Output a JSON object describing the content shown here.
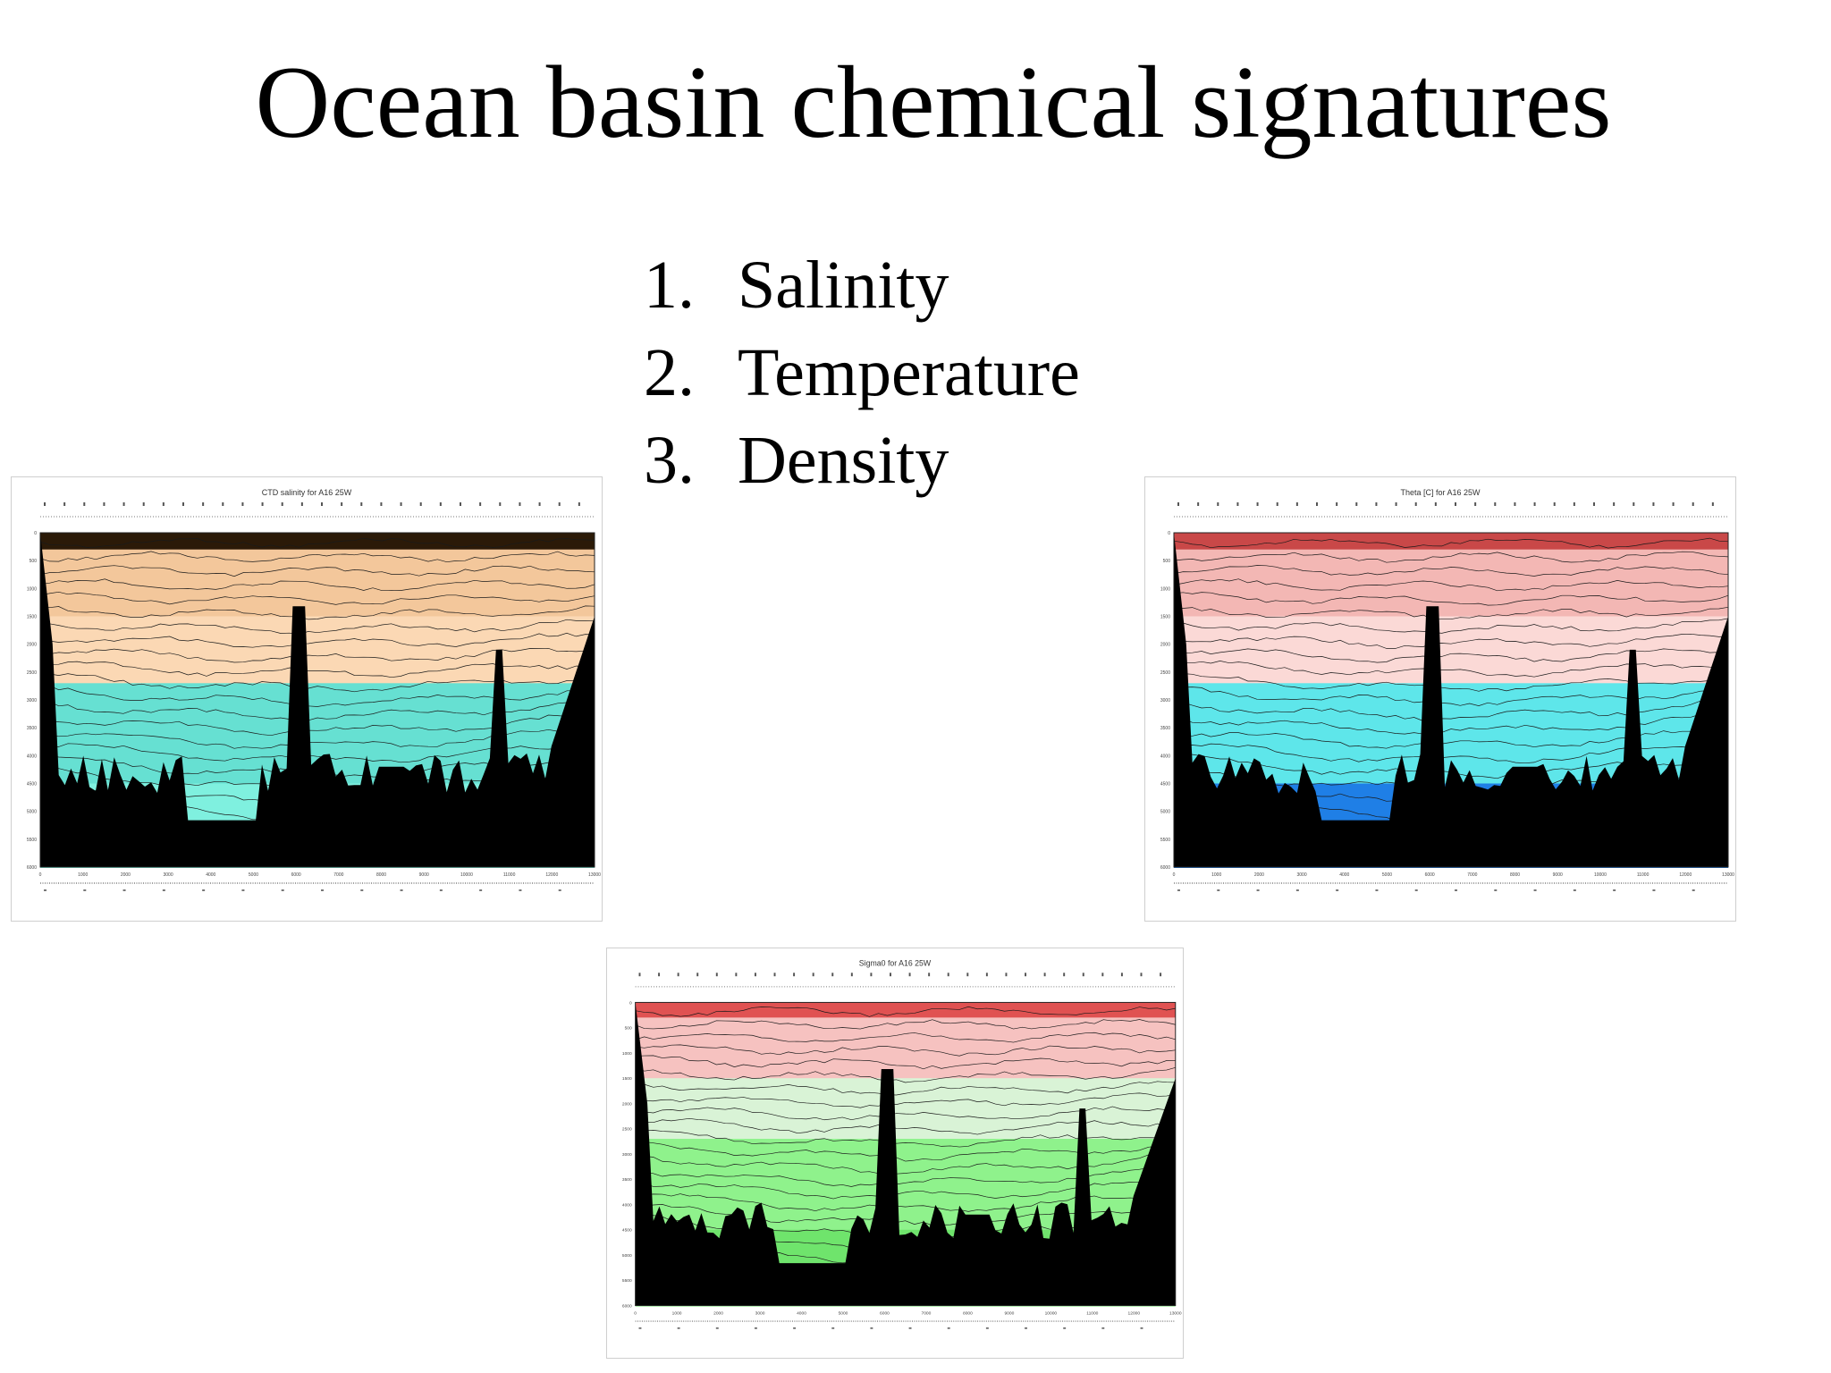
{
  "slide": {
    "title": "Ocean basin chemical signatures",
    "items": [
      {
        "number": "1.",
        "label": "Salinity"
      },
      {
        "number": "2.",
        "label": "Temperature"
      },
      {
        "number": "3.",
        "label": "Density"
      }
    ]
  },
  "figures": [
    {
      "id": "salinity",
      "title": "CTD salinity for A16 25W",
      "palette": {
        "surface": "#2b1a08",
        "upper": "#f3c79b",
        "mid": "#fbd8b4",
        "deep": "#66e0d2",
        "bottom": "#7ff0df",
        "seafloor": "#000000"
      },
      "y_ticks": [
        "0",
        "500",
        "1000",
        "1500",
        "2000",
        "2500",
        "3000",
        "3500",
        "4000",
        "4500",
        "5000",
        "5500",
        "6000"
      ],
      "x_ticks": [
        "0",
        "1000",
        "2000",
        "3000",
        "4000",
        "5000",
        "6000",
        "7000",
        "8000",
        "9000",
        "10000",
        "11000",
        "12000",
        "13000"
      ]
    },
    {
      "id": "temperature",
      "title": "Theta [C] for A16 25W",
      "palette": {
        "surface": "#c94848",
        "upper": "#f3b7b4",
        "mid": "#fbd9d6",
        "deep": "#5ee6ea",
        "bottom": "#1f7fe6",
        "seafloor": "#000000"
      },
      "y_ticks": [
        "0",
        "500",
        "1000",
        "1500",
        "2000",
        "2500",
        "3000",
        "3500",
        "4000",
        "4500",
        "5000",
        "5500",
        "6000"
      ],
      "x_ticks": [
        "0",
        "1000",
        "2000",
        "3000",
        "4000",
        "5000",
        "6000",
        "7000",
        "8000",
        "9000",
        "10000",
        "11000",
        "12000",
        "13000"
      ]
    },
    {
      "id": "density",
      "title": "Sigma0 for A16 25W",
      "palette": {
        "surface": "#e05252",
        "upper": "#f6c2c0",
        "mid": "#d9f3d6",
        "deep": "#8ff28c",
        "bottom": "#6fe46c",
        "seafloor": "#000000"
      },
      "y_ticks": [
        "0",
        "500",
        "1000",
        "1500",
        "2000",
        "2500",
        "3000",
        "3500",
        "4000",
        "4500",
        "5000",
        "5500",
        "6000"
      ],
      "x_ticks": [
        "0",
        "1000",
        "2000",
        "3000",
        "4000",
        "5000",
        "6000",
        "7000",
        "8000",
        "9000",
        "10000",
        "11000",
        "12000",
        "13000"
      ]
    }
  ]
}
